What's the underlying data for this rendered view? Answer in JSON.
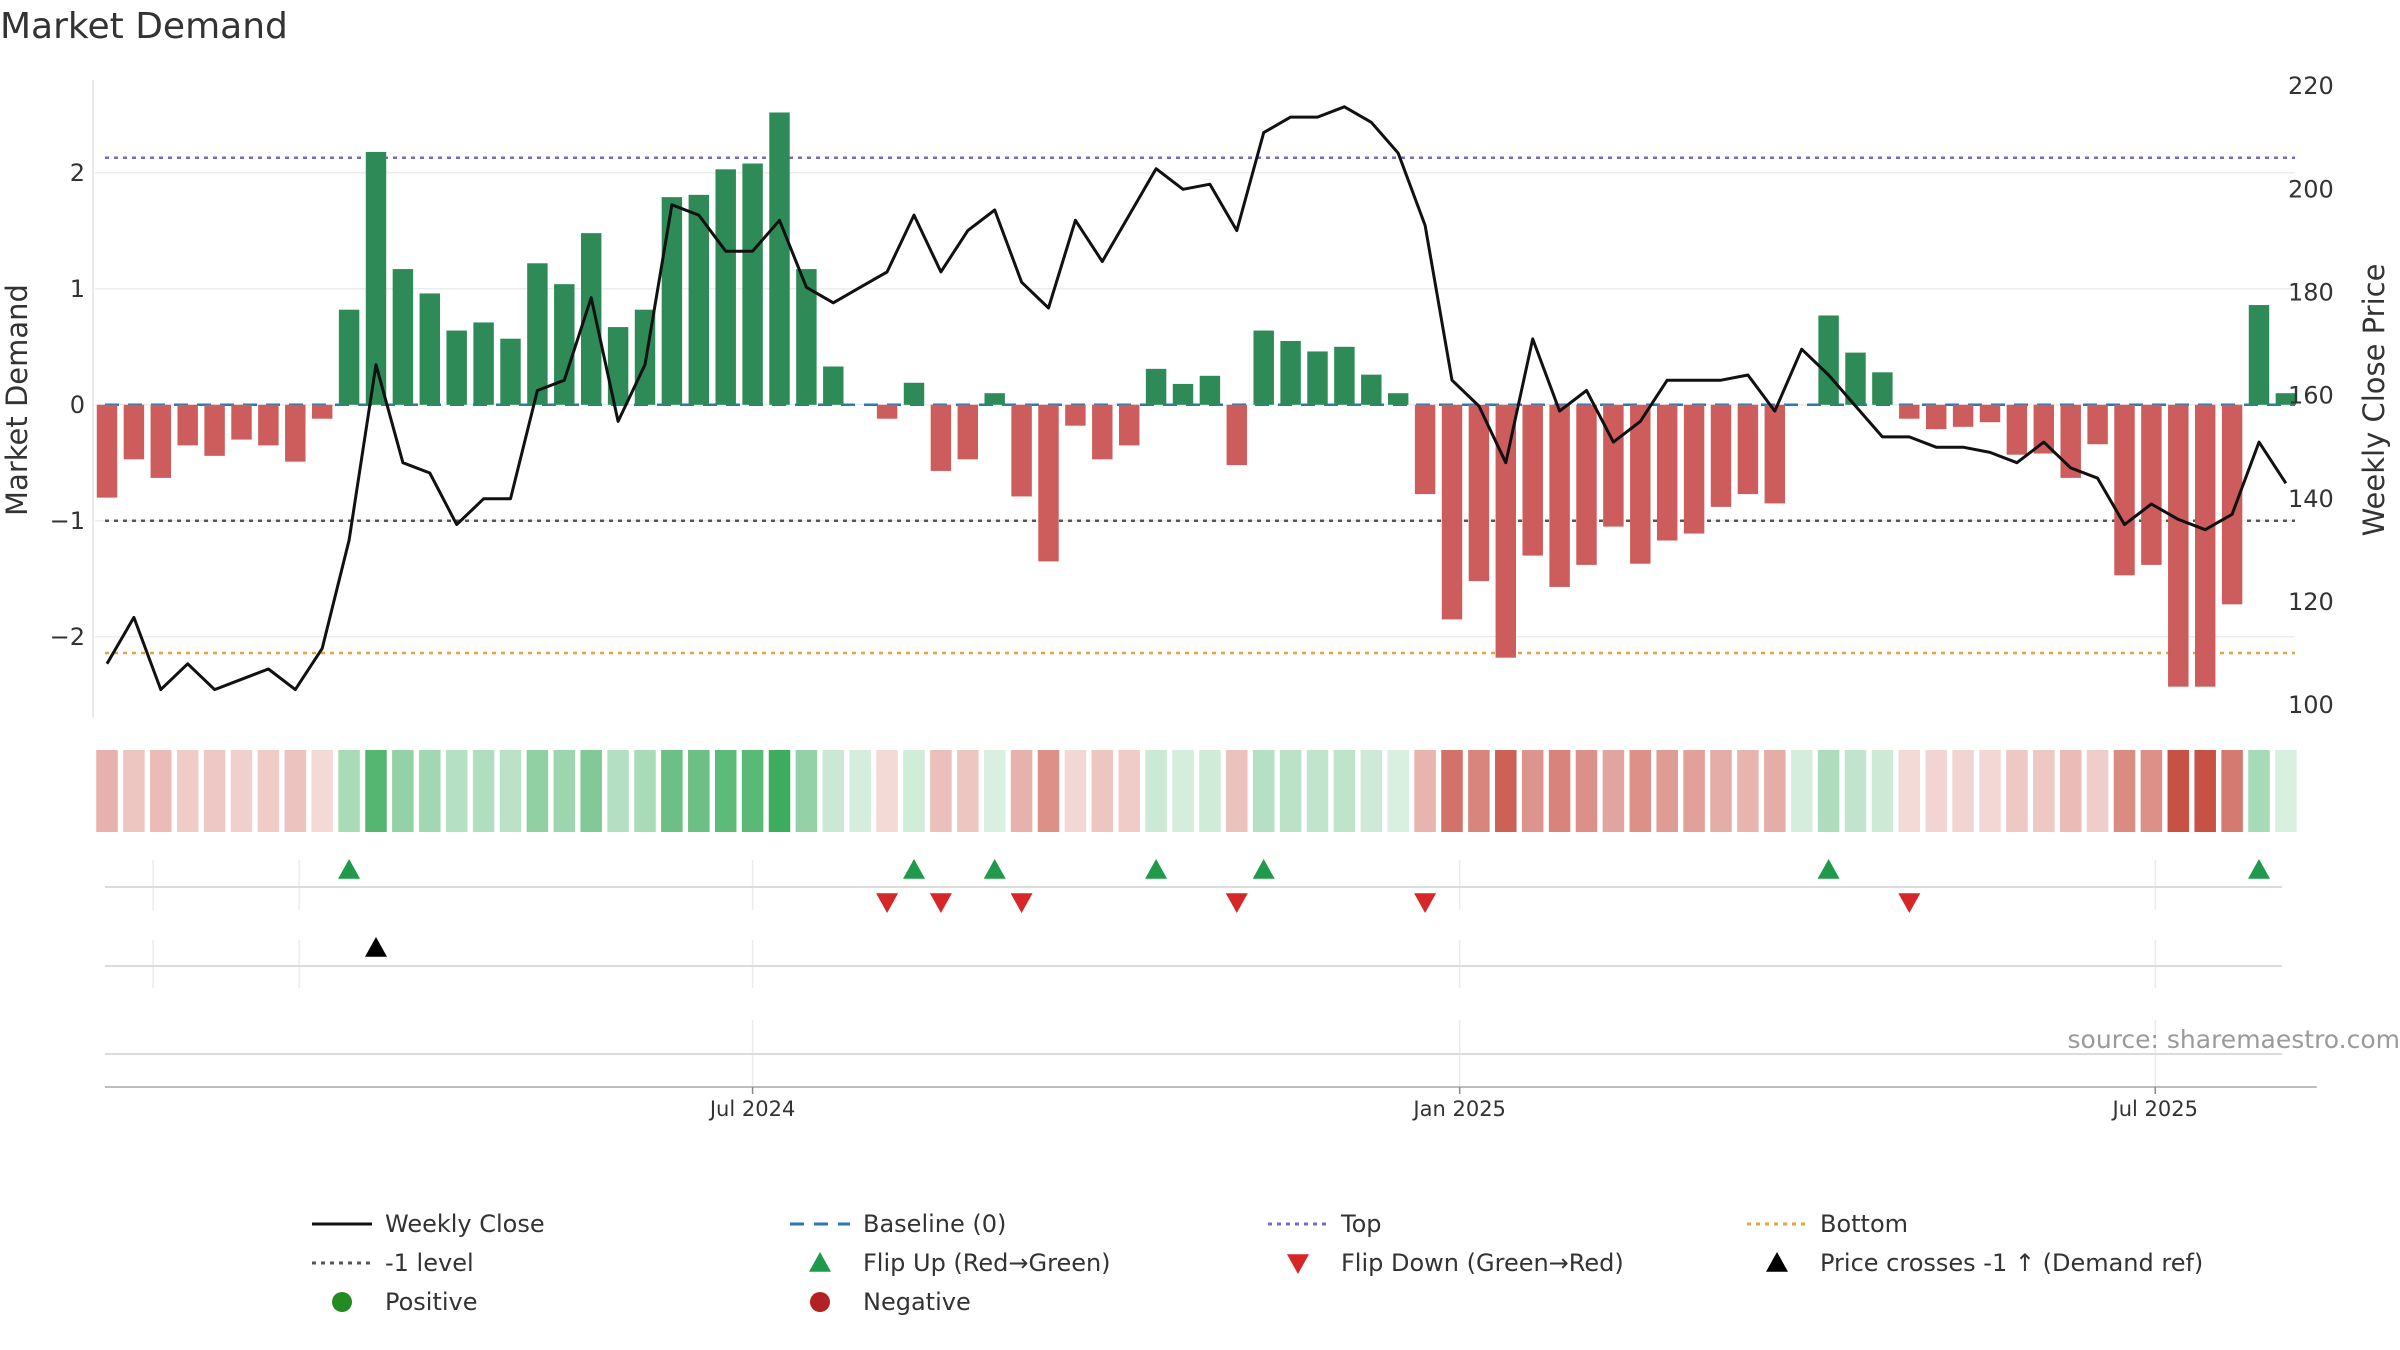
{
  "chart_data": {
    "type": "bar",
    "title": "Market Demand",
    "ylabel": "Market Demand",
    "y2label": "Weekly Close Price",
    "ylim": [
      -2.7,
      2.8
    ],
    "y2lim": [
      97.5,
      221.2
    ],
    "yticks": [
      2,
      1,
      0,
      -1,
      -2
    ],
    "ytick_labels": [
      "2",
      "1",
      "0",
      "−1",
      "−2"
    ],
    "y2ticks": [
      220,
      200,
      180,
      160,
      140,
      120,
      100
    ],
    "y2tick_labels": [
      "220",
      "200",
      "180",
      "160",
      "140",
      "120",
      "100"
    ],
    "x_start": "2024-01-15",
    "week_days": 7,
    "x_axis_end_days": 575,
    "xticks": [
      {
        "label": "Jul 2024",
        "days": 168
      },
      {
        "label": "Jan 2025",
        "days": 352
      },
      {
        "label": "Jul 2025",
        "days": 533
      }
    ],
    "demand": [
      -0.8,
      -0.47,
      -0.63,
      -0.35,
      -0.44,
      -0.3,
      -0.35,
      -0.49,
      -0.12,
      0.82,
      2.18,
      1.17,
      0.96,
      0.64,
      0.71,
      0.57,
      1.22,
      1.04,
      1.48,
      0.67,
      0.82,
      1.79,
      1.81,
      2.03,
      2.08,
      2.52,
      1.17,
      0.33,
      0.0,
      -0.12,
      0.19,
      -0.57,
      -0.47,
      0.1,
      -0.79,
      -1.35,
      -0.18,
      -0.47,
      -0.35,
      0.31,
      0.18,
      0.25,
      -0.52,
      0.64,
      0.55,
      0.46,
      0.5,
      0.26,
      0.1,
      -0.77,
      -1.85,
      -1.52,
      -2.18,
      -1.3,
      -1.57,
      -1.38,
      -1.05,
      -1.37,
      -1.17,
      -1.11,
      -0.88,
      -0.77,
      -0.85,
      0.0,
      0.77,
      0.45,
      0.28,
      -0.12,
      -0.21,
      -0.19,
      -0.15,
      -0.43,
      -0.42,
      -0.63,
      -0.34,
      -1.47,
      -1.38,
      -2.43,
      -2.43,
      -1.72,
      0.86,
      0.1
    ],
    "price": [
      108,
      117,
      103,
      108,
      103,
      105,
      107,
      103,
      111,
      132,
      166,
      147,
      145,
      135,
      140,
      140,
      161,
      163,
      179,
      155,
      166,
      197,
      195,
      188,
      188,
      194,
      181,
      178,
      181,
      184,
      195,
      184,
      192,
      196,
      182,
      177,
      194,
      186,
      195,
      204,
      200,
      201,
      192,
      211,
      214,
      214,
      216,
      213,
      207,
      193,
      163,
      158,
      147,
      171,
      157,
      161,
      151,
      155,
      163,
      163,
      163,
      164,
      157,
      169,
      164,
      158,
      152,
      152,
      150,
      150,
      149,
      147,
      151,
      146,
      144,
      135,
      139,
      136,
      134,
      137,
      151,
      143
    ],
    "levels": {
      "baseline": 0,
      "top": 2.13,
      "minus1": -1,
      "bottom": -2.14
    },
    "flip_up_weeks": [
      9,
      30,
      33,
      39,
      43,
      64,
      80
    ],
    "flip_down_weeks": [
      29,
      31,
      34,
      42,
      49,
      67
    ],
    "price_cross_weeks": [
      10
    ],
    "source": "source: sharemaestro.com",
    "colors": {
      "positive": "#2e8b57",
      "negative": "#cd5c5c",
      "flip_up": "#1e9a4a",
      "flip_down": "#d62728",
      "top_line": "#7b68c8",
      "bottom_line": "#e8a33c",
      "baseline": "#2a7ab0",
      "minus1_line": "#555555",
      "price_line": "#111111"
    },
    "legend": [
      {
        "label": "Weekly Close",
        "kind": "line-solid",
        "color": "#111111"
      },
      {
        "label": "Baseline (0)",
        "kind": "line-dash",
        "color": "#2a7ab0"
      },
      {
        "label": "Top",
        "kind": "line-dot",
        "color": "#7b68c8"
      },
      {
        "label": "Bottom",
        "kind": "line-dot",
        "color": "#e8a33c"
      },
      {
        "label": "-1 level",
        "kind": "line-dot",
        "color": "#555555"
      },
      {
        "label": "Flip Up (Red→Green)",
        "kind": "tri-up",
        "color": "#1e9a4a"
      },
      {
        "label": "Flip Down (Green→Red)",
        "kind": "tri-down",
        "color": "#d62728"
      },
      {
        "label": "Price crosses -1 ↑ (Demand ref)",
        "kind": "tri-up",
        "color": "#000000"
      },
      {
        "label": "Positive",
        "kind": "dot",
        "color": "#228b22"
      },
      {
        "label": "Negative",
        "kind": "dot",
        "color": "#b22222"
      }
    ]
  }
}
